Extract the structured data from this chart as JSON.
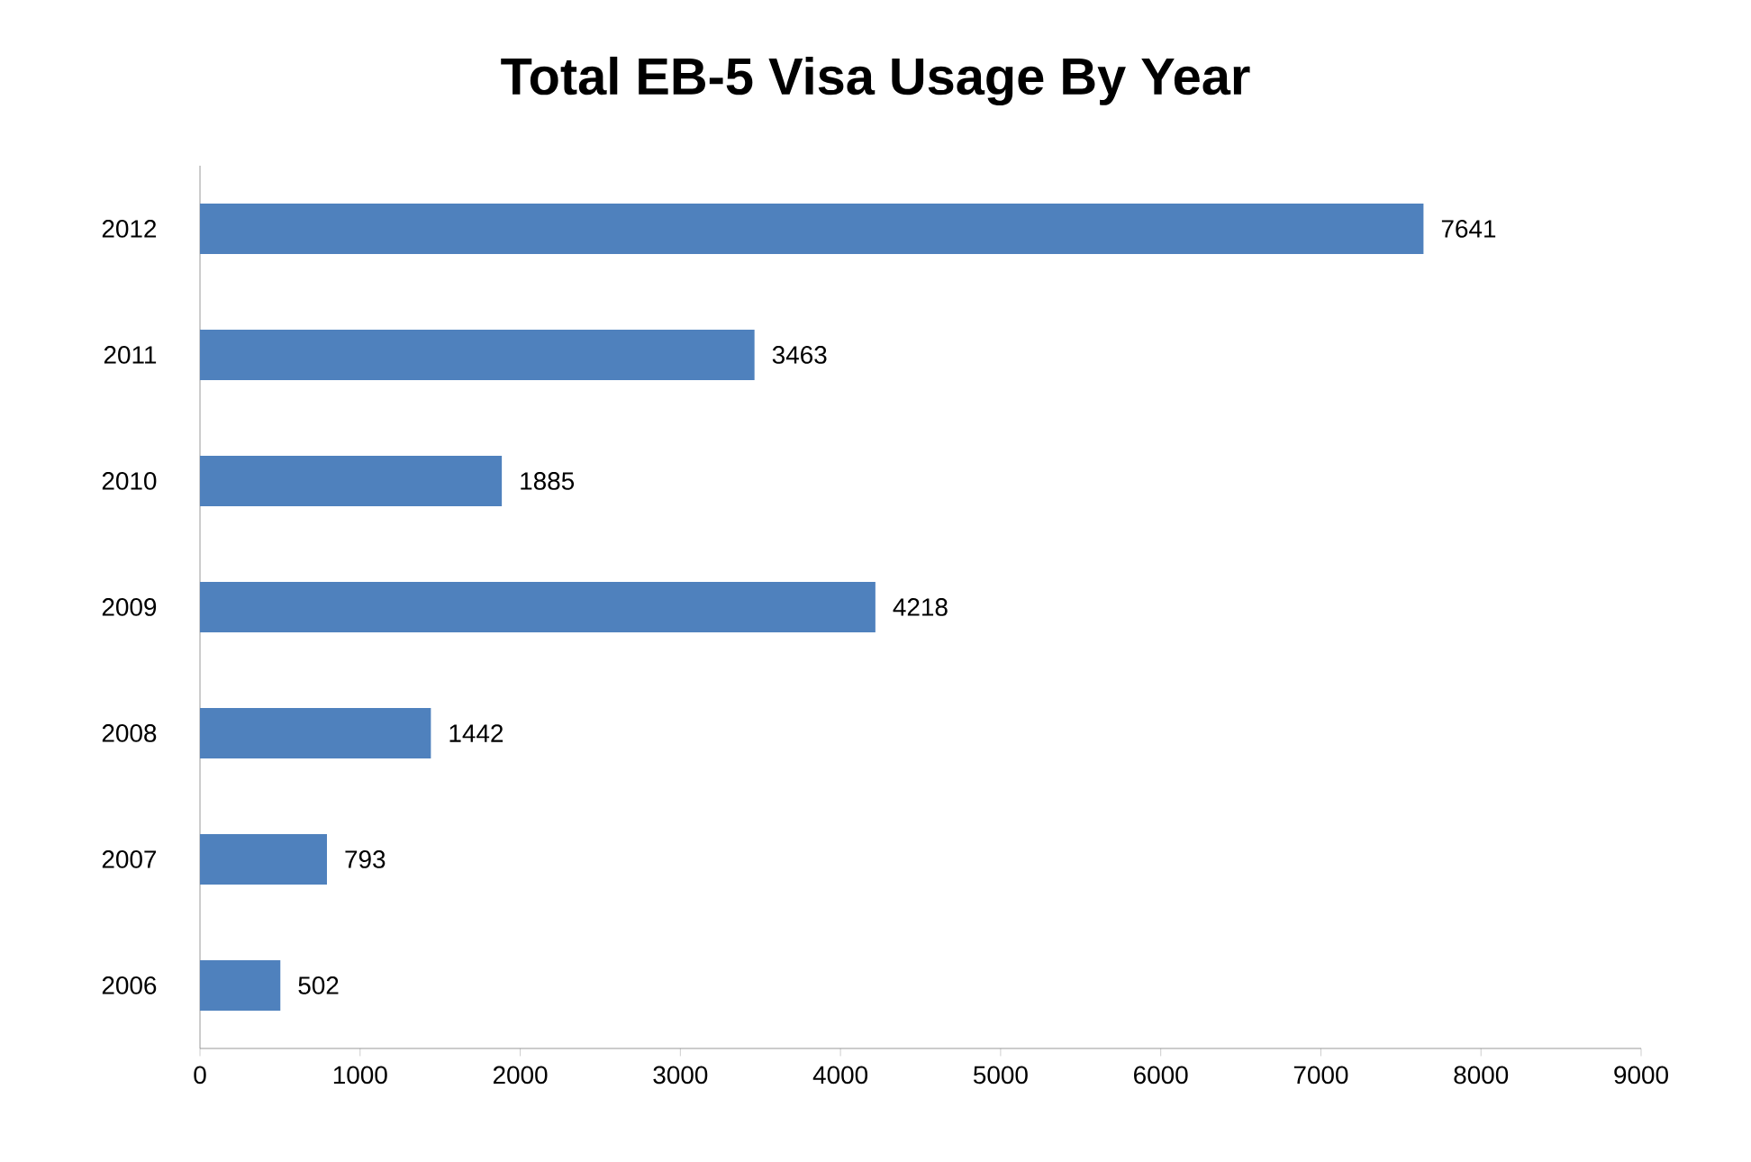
{
  "chart_data": {
    "type": "bar",
    "orientation": "horizontal",
    "title": "Total EB-5 Visa Usage By Year",
    "categories": [
      "2012",
      "2011",
      "2010",
      "2009",
      "2008",
      "2007",
      "2006"
    ],
    "values": [
      7641,
      3463,
      1885,
      4218,
      1442,
      793,
      502
    ],
    "color": "#4f81bd",
    "data_labels": true,
    "grid": false,
    "xlim": [
      0,
      9000
    ],
    "xticks": [
      0,
      1000,
      2000,
      3000,
      4000,
      5000,
      6000,
      7000,
      8000,
      9000
    ]
  }
}
